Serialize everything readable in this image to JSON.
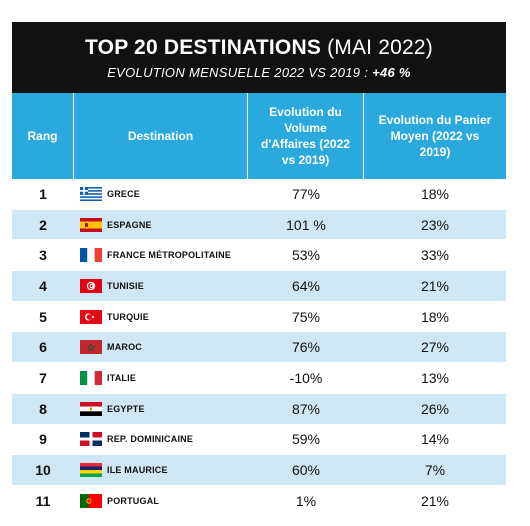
{
  "header": {
    "title_bold": "TOP 20 DESTINATIONS",
    "title_light": "(MAI 2022)",
    "subtitle_prefix": "EVOLUTION MENSUELLE 2022 VS 2019 :",
    "subtitle_value": "+46 %"
  },
  "columns": {
    "rank": "Rang",
    "destination": "Destination",
    "volume": "Evolution du Volume d'Affaires (2022 vs 2019)",
    "panier": "Evolution du Panier Moyen (2022 vs 2019)"
  },
  "rows": [
    {
      "rank": "1",
      "destination": "GRECE",
      "flag": "greece-flag-icon",
      "volume": "77%",
      "panier": "18%"
    },
    {
      "rank": "2",
      "destination": "ESPAGNE",
      "flag": "spain-flag-icon",
      "volume": "101 %",
      "panier": "23%"
    },
    {
      "rank": "3",
      "destination": "FRANCE MÉTROPOLITAINE",
      "flag": "france-flag-icon",
      "volume": "53%",
      "panier": "33%"
    },
    {
      "rank": "4",
      "destination": "TUNISIE",
      "flag": "tunisia-flag-icon",
      "volume": "64%",
      "panier": "21%"
    },
    {
      "rank": "5",
      "destination": "TURQUIE",
      "flag": "turkey-flag-icon",
      "volume": "75%",
      "panier": "18%"
    },
    {
      "rank": "6",
      "destination": "MAROC",
      "flag": "morocco-flag-icon",
      "volume": "76%",
      "panier": "27%"
    },
    {
      "rank": "7",
      "destination": "ITALIE",
      "flag": "italy-flag-icon",
      "volume": "-10%",
      "panier": "13%"
    },
    {
      "rank": "8",
      "destination": "EGYPTE",
      "flag": "egypt-flag-icon",
      "volume": "87%",
      "panier": "26%"
    },
    {
      "rank": "9",
      "destination": "REP. DOMINICAINE",
      "flag": "dominican-republic-flag-icon",
      "volume": "59%",
      "panier": "14%"
    },
    {
      "rank": "10",
      "destination": "ILE MAURICE",
      "flag": "mauritius-flag-icon",
      "volume": "60%",
      "panier": "7%"
    },
    {
      "rank": "11",
      "destination": "PORTUGAL",
      "flag": "portugal-flag-icon",
      "volume": "1%",
      "panier": "21%"
    }
  ],
  "colors": {
    "banner": "#111111",
    "header": "#2aa9de",
    "row_alt": "#cfe7f4"
  }
}
